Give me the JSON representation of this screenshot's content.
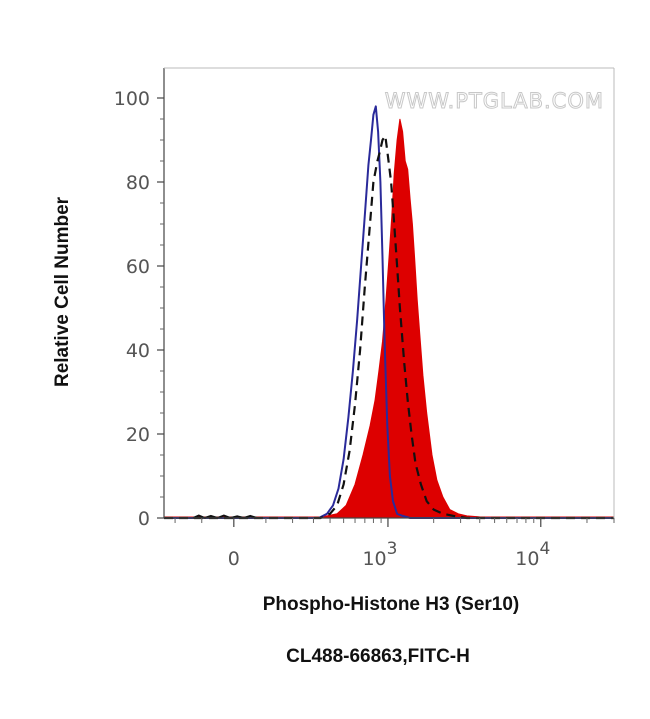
{
  "chart_data": {
    "type": "area",
    "xlabel": "Phospho-Histone H3 (Ser10)",
    "ylabel": "Relative Cell Number",
    "caption": "CL488-66863,FITC-H",
    "watermark": "WWW.PTGLAB.COM",
    "x_scale": "biexponential",
    "xlim": [
      -250,
      30000
    ],
    "ylim": [
      0,
      100
    ],
    "grid": false,
    "y_ticks": [
      {
        "value": 0,
        "label": "0"
      },
      {
        "value": 20,
        "label": "20"
      },
      {
        "value": 40,
        "label": "40"
      },
      {
        "value": 60,
        "label": "60"
      },
      {
        "value": 80,
        "label": "80"
      },
      {
        "value": 100,
        "label": "100"
      }
    ],
    "x_ticks": [
      {
        "value": 0,
        "label": "0"
      },
      {
        "value": 1000,
        "base": "10",
        "exp": "3"
      },
      {
        "value": 10000,
        "base": "10",
        "exp": "4"
      }
    ],
    "series": [
      {
        "style": "filled",
        "color": "#dd0000",
        "x": [
          -250,
          300,
          380,
          450,
          520,
          600,
          680,
          760,
          820,
          870,
          920,
          970,
          1020,
          1060,
          1100,
          1150,
          1200,
          1250,
          1300,
          1350,
          1400,
          1450,
          1500,
          1560,
          1620,
          1700,
          1800,
          1950,
          2100,
          2300,
          2550,
          2900,
          3300,
          3900,
          4500,
          30000
        ],
        "y": [
          0,
          0,
          0.5,
          1,
          3,
          8,
          15,
          22,
          28,
          35,
          42,
          52,
          63,
          72,
          82,
          90,
          95,
          92,
          85,
          83,
          76,
          70,
          62,
          52,
          44,
          34,
          25,
          15,
          9,
          5,
          2,
          1,
          0.5,
          0.3,
          0,
          0
        ]
      },
      {
        "style": "solid",
        "color": "#2a2a9a",
        "x": [
          -250,
          330,
          380,
          420,
          460,
          500,
          540,
          580,
          620,
          660,
          700,
          740,
          770,
          800,
          830,
          860,
          890,
          920,
          950,
          990,
          1030,
          1080,
          1150,
          1250,
          1400,
          30000
        ],
        "y": [
          0,
          0,
          1,
          3,
          7,
          14,
          24,
          35,
          47,
          60,
          72,
          84,
          90,
          96,
          98,
          92,
          80,
          62,
          42,
          22,
          10,
          4,
          1,
          0.5,
          0,
          0
        ]
      },
      {
        "style": "dashed",
        "color": "#111111",
        "x": [
          -250,
          340,
          400,
          450,
          500,
          550,
          600,
          650,
          700,
          750,
          800,
          850,
          880,
          920,
          960,
          1000,
          1050,
          1100,
          1150,
          1200,
          1280,
          1350,
          1430,
          1520,
          1650,
          1800,
          2000,
          2300,
          2700,
          3300,
          30000
        ],
        "y": [
          0,
          0,
          1,
          3,
          8,
          16,
          27,
          40,
          55,
          68,
          80,
          85,
          87,
          90,
          91,
          86,
          80,
          70,
          60,
          50,
          37,
          28,
          20,
          13,
          8,
          4,
          2,
          1,
          0.5,
          0,
          0
        ]
      },
      {
        "style": "solid",
        "color": "#111111",
        "x": [
          -130,
          -110,
          -90,
          -70,
          -50,
          -30,
          -10,
          10,
          30,
          50,
          70
        ],
        "y": [
          0,
          0.6,
          0,
          0.5,
          0,
          0.6,
          0,
          0.4,
          0,
          0.5,
          0
        ]
      }
    ]
  }
}
